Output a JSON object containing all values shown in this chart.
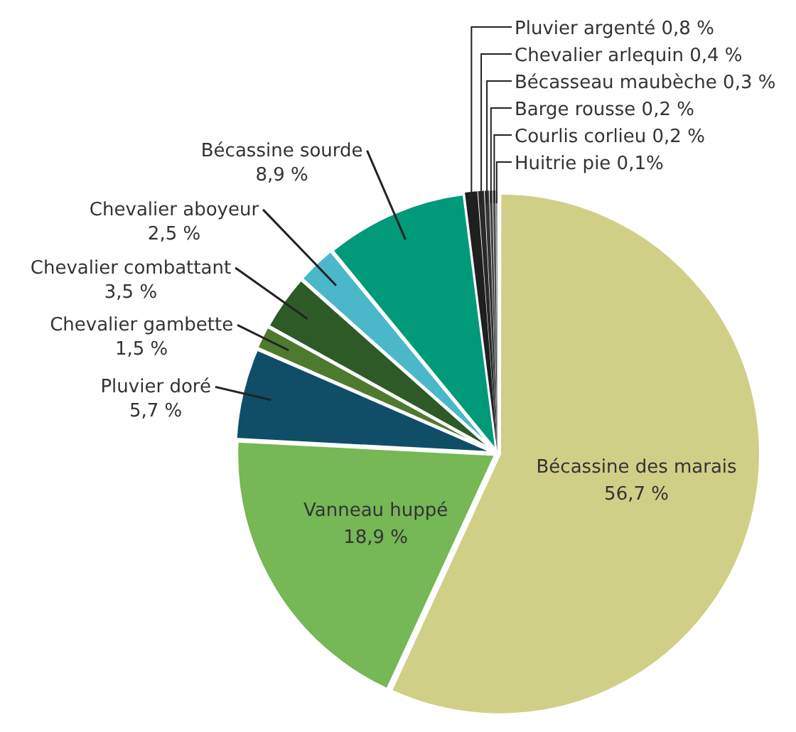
{
  "chart_data": {
    "type": "pie",
    "categories": [
      "Bécassine des marais",
      "Vanneau huppé",
      "Pluvier doré",
      "Chevalier gambette",
      "Chevalier combattant",
      "Chevalier aboyeur",
      "Bécassine sourde",
      "Pluvier argenté",
      "Chevalier arlequin",
      "Bécasseau maubèche",
      "Barge rousse",
      "Courlis corlieu",
      "Huitrie pie"
    ],
    "values": [
      56.7,
      18.9,
      5.7,
      1.5,
      3.5,
      2.5,
      8.9,
      0.8,
      0.4,
      0.3,
      0.2,
      0.2,
      0.1
    ],
    "value_labels": [
      "56,7 %",
      "18,9 %",
      "5,7 %",
      "1,5 %",
      "3,5 %",
      "2,5 %",
      "8,9 %",
      "0,8 %",
      "0,4 %",
      "0,3 %",
      "0,2 %",
      "0,2 %",
      "0,1%"
    ],
    "colors": [
      "#d0cf87",
      "#76b756",
      "#0f4e66",
      "#4e7a2f",
      "#2e5a28",
      "#4ab8c8",
      "#00997a",
      "#1f1f1f",
      "#2a2a2a",
      "#353535",
      "#404040",
      "#4b4b4b",
      "#565656"
    ],
    "legend": false
  }
}
